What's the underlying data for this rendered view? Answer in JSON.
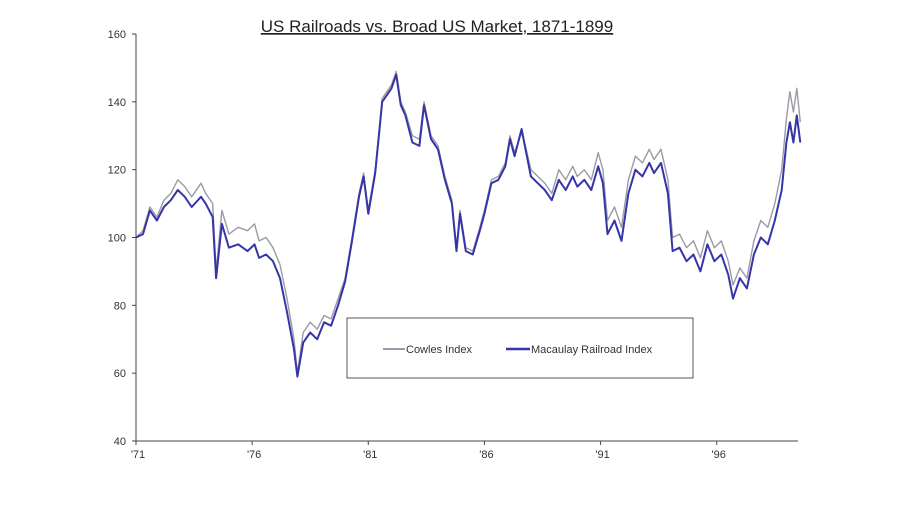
{
  "chart_data": {
    "type": "line",
    "title": "US Railroads vs. Broad US Market, 1871-1899",
    "xlabel": "",
    "ylabel": "",
    "xlim": [
      1871,
      1899.5
    ],
    "ylim": [
      40,
      160
    ],
    "y_ticks": [
      40,
      60,
      80,
      100,
      120,
      140,
      160
    ],
    "x_ticks": [
      {
        "value": 1871,
        "label": "'71"
      },
      {
        "value": 1876,
        "label": "'76"
      },
      {
        "value": 1881,
        "label": "'81"
      },
      {
        "value": 1886,
        "label": "'86"
      },
      {
        "value": 1891,
        "label": "'91"
      },
      {
        "value": 1896,
        "label": "'96"
      }
    ],
    "grid": false,
    "legend_position": "center-bottom",
    "series": [
      {
        "name": "Cowles Index",
        "color": "#9a9aa8",
        "points": [
          [
            1871.0,
            100
          ],
          [
            1871.3,
            102
          ],
          [
            1871.6,
            109
          ],
          [
            1871.9,
            106
          ],
          [
            1872.2,
            111
          ],
          [
            1872.5,
            113
          ],
          [
            1872.8,
            117
          ],
          [
            1873.1,
            115
          ],
          [
            1873.4,
            112
          ],
          [
            1873.8,
            116
          ],
          [
            1874.0,
            113
          ],
          [
            1874.3,
            110
          ],
          [
            1874.45,
            90
          ],
          [
            1874.7,
            108
          ],
          [
            1875.0,
            101
          ],
          [
            1875.4,
            103
          ],
          [
            1875.8,
            102
          ],
          [
            1876.1,
            104
          ],
          [
            1876.3,
            99
          ],
          [
            1876.6,
            100
          ],
          [
            1876.9,
            97
          ],
          [
            1877.2,
            92
          ],
          [
            1877.5,
            82
          ],
          [
            1877.8,
            70
          ],
          [
            1877.95,
            60
          ],
          [
            1878.2,
            72
          ],
          [
            1878.5,
            75
          ],
          [
            1878.8,
            73
          ],
          [
            1879.1,
            77
          ],
          [
            1879.4,
            76
          ],
          [
            1879.7,
            82
          ],
          [
            1880.0,
            88
          ],
          [
            1880.3,
            100
          ],
          [
            1880.6,
            113
          ],
          [
            1880.8,
            119
          ],
          [
            1881.0,
            108
          ],
          [
            1881.3,
            120
          ],
          [
            1881.6,
            141
          ],
          [
            1881.8,
            143
          ],
          [
            1882.0,
            145
          ],
          [
            1882.2,
            149
          ],
          [
            1882.4,
            140
          ],
          [
            1882.6,
            137
          ],
          [
            1882.9,
            130
          ],
          [
            1883.2,
            129
          ],
          [
            1883.4,
            140
          ],
          [
            1883.7,
            130
          ],
          [
            1884.0,
            127
          ],
          [
            1884.3,
            118
          ],
          [
            1884.6,
            111
          ],
          [
            1884.8,
            97
          ],
          [
            1884.95,
            108
          ],
          [
            1885.2,
            97
          ],
          [
            1885.5,
            96
          ],
          [
            1885.8,
            103
          ],
          [
            1886.0,
            108
          ],
          [
            1886.3,
            117
          ],
          [
            1886.6,
            118
          ],
          [
            1886.9,
            122
          ],
          [
            1887.1,
            130
          ],
          [
            1887.3,
            125
          ],
          [
            1887.6,
            131
          ],
          [
            1887.8,
            126
          ],
          [
            1888.0,
            120
          ],
          [
            1888.3,
            118
          ],
          [
            1888.6,
            116
          ],
          [
            1888.9,
            113
          ],
          [
            1889.2,
            120
          ],
          [
            1889.5,
            117
          ],
          [
            1889.8,
            121
          ],
          [
            1890.0,
            118
          ],
          [
            1890.3,
            120
          ],
          [
            1890.6,
            117
          ],
          [
            1890.9,
            125
          ],
          [
            1891.1,
            120
          ],
          [
            1891.3,
            105
          ],
          [
            1891.6,
            109
          ],
          [
            1891.9,
            103
          ],
          [
            1892.2,
            117
          ],
          [
            1892.5,
            124
          ],
          [
            1892.8,
            122
          ],
          [
            1893.1,
            126
          ],
          [
            1893.3,
            123
          ],
          [
            1893.6,
            126
          ],
          [
            1893.9,
            117
          ],
          [
            1894.1,
            100
          ],
          [
            1894.4,
            101
          ],
          [
            1894.7,
            97
          ],
          [
            1895.0,
            99
          ],
          [
            1895.3,
            94
          ],
          [
            1895.6,
            102
          ],
          [
            1895.9,
            97
          ],
          [
            1896.2,
            99
          ],
          [
            1896.5,
            93
          ],
          [
            1896.7,
            86
          ],
          [
            1897.0,
            91
          ],
          [
            1897.3,
            88
          ],
          [
            1897.6,
            99
          ],
          [
            1897.9,
            105
          ],
          [
            1898.2,
            103
          ],
          [
            1898.5,
            110
          ],
          [
            1898.8,
            120
          ],
          [
            1899.0,
            135
          ],
          [
            1899.15,
            143
          ],
          [
            1899.3,
            137
          ],
          [
            1899.45,
            144
          ],
          [
            1899.6,
            134
          ]
        ]
      },
      {
        "name": "Macaulay Railroad Index",
        "color": "#3535a8",
        "points": [
          [
            1871.0,
            100
          ],
          [
            1871.3,
            101
          ],
          [
            1871.6,
            108
          ],
          [
            1871.9,
            105
          ],
          [
            1872.2,
            109
          ],
          [
            1872.5,
            111
          ],
          [
            1872.8,
            114
          ],
          [
            1873.1,
            112
          ],
          [
            1873.4,
            109
          ],
          [
            1873.8,
            112
          ],
          [
            1874.0,
            110
          ],
          [
            1874.3,
            106
          ],
          [
            1874.45,
            88
          ],
          [
            1874.7,
            104
          ],
          [
            1875.0,
            97
          ],
          [
            1875.4,
            98
          ],
          [
            1875.8,
            96
          ],
          [
            1876.1,
            98
          ],
          [
            1876.3,
            94
          ],
          [
            1876.6,
            95
          ],
          [
            1876.9,
            93
          ],
          [
            1877.2,
            88
          ],
          [
            1877.5,
            78
          ],
          [
            1877.8,
            67
          ],
          [
            1877.95,
            59
          ],
          [
            1878.2,
            69
          ],
          [
            1878.5,
            72
          ],
          [
            1878.8,
            70
          ],
          [
            1879.1,
            75
          ],
          [
            1879.4,
            74
          ],
          [
            1879.7,
            80
          ],
          [
            1880.0,
            87
          ],
          [
            1880.3,
            99
          ],
          [
            1880.6,
            112
          ],
          [
            1880.8,
            118
          ],
          [
            1881.0,
            107
          ],
          [
            1881.3,
            119
          ],
          [
            1881.6,
            140
          ],
          [
            1881.8,
            142
          ],
          [
            1882.0,
            144
          ],
          [
            1882.2,
            148
          ],
          [
            1882.4,
            139
          ],
          [
            1882.6,
            136
          ],
          [
            1882.9,
            128
          ],
          [
            1883.2,
            127
          ],
          [
            1883.4,
            139
          ],
          [
            1883.7,
            129
          ],
          [
            1884.0,
            126
          ],
          [
            1884.3,
            117
          ],
          [
            1884.6,
            110
          ],
          [
            1884.8,
            96
          ],
          [
            1884.95,
            107
          ],
          [
            1885.2,
            96
          ],
          [
            1885.5,
            95
          ],
          [
            1885.8,
            102
          ],
          [
            1886.0,
            107
          ],
          [
            1886.3,
            116
          ],
          [
            1886.6,
            117
          ],
          [
            1886.9,
            121
          ],
          [
            1887.1,
            129
          ],
          [
            1887.3,
            124
          ],
          [
            1887.6,
            132
          ],
          [
            1887.8,
            125
          ],
          [
            1888.0,
            118
          ],
          [
            1888.3,
            116
          ],
          [
            1888.6,
            114
          ],
          [
            1888.9,
            111
          ],
          [
            1889.2,
            117
          ],
          [
            1889.5,
            114
          ],
          [
            1889.8,
            118
          ],
          [
            1890.0,
            115
          ],
          [
            1890.3,
            117
          ],
          [
            1890.6,
            114
          ],
          [
            1890.9,
            121
          ],
          [
            1891.1,
            116
          ],
          [
            1891.3,
            101
          ],
          [
            1891.6,
            105
          ],
          [
            1891.9,
            99
          ],
          [
            1892.2,
            113
          ],
          [
            1892.5,
            120
          ],
          [
            1892.8,
            118
          ],
          [
            1893.1,
            122
          ],
          [
            1893.3,
            119
          ],
          [
            1893.6,
            122
          ],
          [
            1893.9,
            113
          ],
          [
            1894.1,
            96
          ],
          [
            1894.4,
            97
          ],
          [
            1894.7,
            93
          ],
          [
            1895.0,
            95
          ],
          [
            1895.3,
            90
          ],
          [
            1895.6,
            98
          ],
          [
            1895.9,
            93
          ],
          [
            1896.2,
            95
          ],
          [
            1896.5,
            89
          ],
          [
            1896.7,
            82
          ],
          [
            1897.0,
            88
          ],
          [
            1897.3,
            85
          ],
          [
            1897.6,
            95
          ],
          [
            1897.9,
            100
          ],
          [
            1898.2,
            98
          ],
          [
            1898.5,
            105
          ],
          [
            1898.8,
            114
          ],
          [
            1899.0,
            128
          ],
          [
            1899.15,
            134
          ],
          [
            1899.3,
            128
          ],
          [
            1899.45,
            136
          ],
          [
            1899.6,
            128
          ]
        ]
      }
    ]
  }
}
